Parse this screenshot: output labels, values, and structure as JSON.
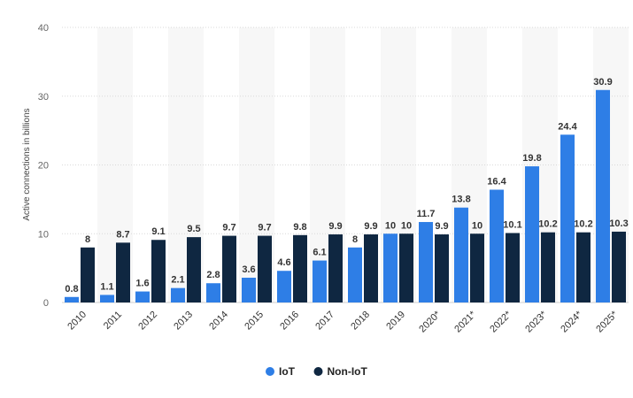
{
  "chart_data": {
    "type": "bar",
    "title": "",
    "xlabel": "",
    "ylabel": "Active connections in billions",
    "ylim": [
      0,
      40
    ],
    "yticks": [
      0,
      10,
      20,
      30,
      40
    ],
    "grid": true,
    "legend_position": "bottom-center",
    "categories": [
      "2010",
      "2011",
      "2012",
      "2013",
      "2014",
      "2015",
      "2016",
      "2017",
      "2018",
      "2019",
      "2020*",
      "2021*",
      "2022*",
      "2023*",
      "2024*",
      "2025*"
    ],
    "series": [
      {
        "name": "IoT",
        "color": "#2e7ee6",
        "values": [
          0.8,
          1.1,
          1.6,
          2.1,
          2.8,
          3.6,
          4.6,
          6.1,
          8,
          10,
          11.7,
          13.8,
          16.4,
          19.8,
          24.4,
          30.9
        ]
      },
      {
        "name": "Non-IoT",
        "color": "#0f2741",
        "values": [
          8,
          8.7,
          9.1,
          9.5,
          9.7,
          9.7,
          9.8,
          9.9,
          9.9,
          10,
          9.9,
          10,
          10.1,
          10.2,
          10.2,
          10.3
        ]
      }
    ]
  }
}
